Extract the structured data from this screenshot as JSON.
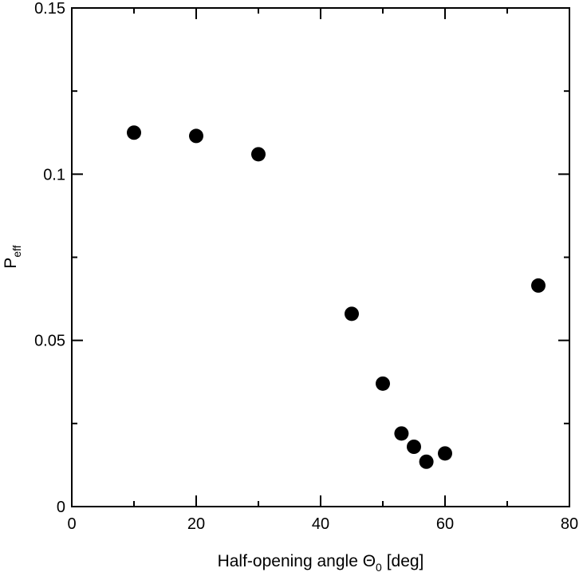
{
  "chart_data": {
    "type": "scatter",
    "xlabel": "Half-opening angle Θ",
    "xlabel_sub": "0",
    "xlabel_suffix": "[deg]",
    "ylabel": "P",
    "ylabel_sub": "eff",
    "xlim": [
      0,
      80
    ],
    "ylim": [
      0,
      0.15
    ],
    "x_ticks": [
      {
        "value": 0,
        "label": "0"
      },
      {
        "value": 20,
        "label": "20"
      },
      {
        "value": 40,
        "label": "40"
      },
      {
        "value": 60,
        "label": "60"
      },
      {
        "value": 80,
        "label": "80"
      }
    ],
    "y_ticks": [
      {
        "value": 0,
        "label": "0"
      },
      {
        "value": 0.05,
        "label": "0.05"
      },
      {
        "value": 0.1,
        "label": "0.1"
      },
      {
        "value": 0.15,
        "label": "0.15"
      }
    ],
    "x_minor_step": 10,
    "y_minor_step": 0.025,
    "grid": false,
    "legend": "none",
    "marker_color": "#000000",
    "points": [
      {
        "x": 10,
        "y": 0.1125
      },
      {
        "x": 20,
        "y": 0.1115
      },
      {
        "x": 30,
        "y": 0.106
      },
      {
        "x": 45,
        "y": 0.058
      },
      {
        "x": 50,
        "y": 0.037
      },
      {
        "x": 53,
        "y": 0.022
      },
      {
        "x": 55,
        "y": 0.018
      },
      {
        "x": 57,
        "y": 0.0135
      },
      {
        "x": 60,
        "y": 0.016
      },
      {
        "x": 75,
        "y": 0.0665
      }
    ]
  }
}
